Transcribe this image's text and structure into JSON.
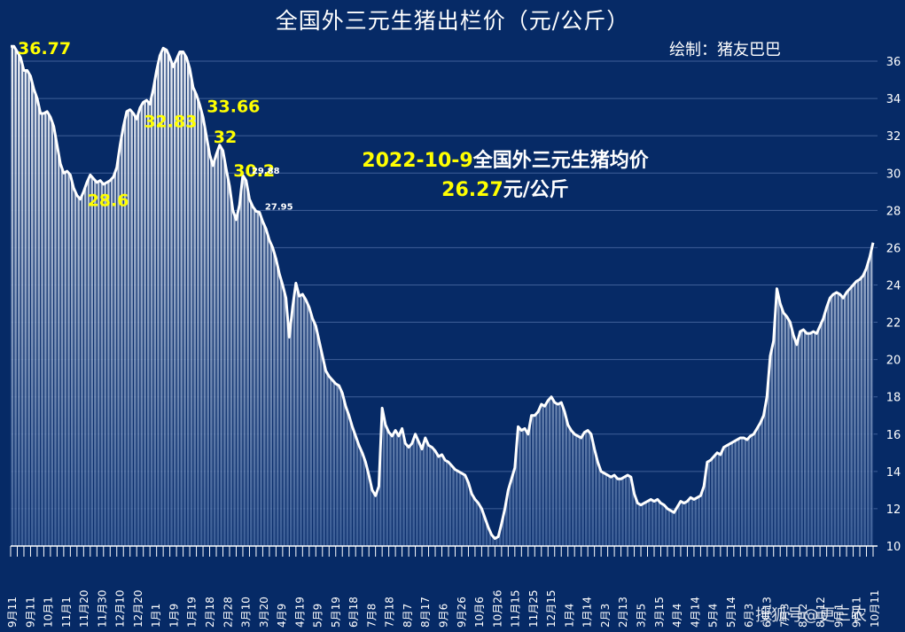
{
  "title": "全国外三元生猪出栏价（元/公斤）",
  "credit": "绘制：猪友巴巴",
  "info": {
    "line1_date": "2022-10-9",
    "line1_text": "全国外三元生猪均价",
    "line2_value": "26.27",
    "line2_unit": "元/公斤"
  },
  "watermark": "搜狐号@更三农",
  "colors": {
    "background": "#062a66",
    "line": "#ffffff",
    "label": "#ffff00",
    "grid": "#3f5f98"
  },
  "chart_data": {
    "type": "area",
    "title": "全国外三元生猪出栏价（元/公斤）",
    "ylabel": "元/公斤",
    "ylim": [
      10,
      37
    ],
    "yticks": [
      10,
      12,
      14,
      16,
      18,
      20,
      22,
      24,
      26,
      28,
      30,
      32,
      34,
      36
    ],
    "grid": true,
    "x_tick_labels": [
      "9月11",
      "9月11",
      "10月1",
      "11月1",
      "11月20",
      "11月30",
      "12月10",
      "12月20",
      "1月1",
      "1月9",
      "1月19",
      "2月18",
      "2月28",
      "3月10",
      "3月20",
      "4月9",
      "4月19",
      "5月9",
      "5月19",
      "6月18",
      "7月8",
      "7月18",
      "8月7",
      "8月17",
      "9月6",
      "9月26",
      "10月6",
      "10月26",
      "11月15",
      "11月25",
      "12月15",
      "1月4",
      "1月14",
      "2月3",
      "2月13",
      "3月5",
      "3月15",
      "4月4",
      "4月14",
      "5月4",
      "5月14",
      "6月3",
      "6月13",
      "7月3",
      "8月2",
      "8月12",
      "9月1",
      "9月11",
      "10月11"
    ],
    "annotations": [
      {
        "text": "36.77",
        "value": 36.77,
        "large": true
      },
      {
        "text": "33.66",
        "value": 33.66,
        "large": true
      },
      {
        "text": "32.83",
        "value": 32.83,
        "large": true
      },
      {
        "text": "32",
        "value": 32,
        "large": true
      },
      {
        "text": "30.2",
        "value": 30.2,
        "large": true
      },
      {
        "text": "29.88",
        "value": 29.88,
        "large": false
      },
      {
        "text": "28.6",
        "value": 28.6,
        "large": true
      },
      {
        "text": "27.95",
        "value": 27.95,
        "large": false
      }
    ],
    "series": [
      {
        "name": "全国外三元生猪出栏价",
        "values": [
          36.8,
          36.8,
          36.5,
          36.2,
          35.5,
          35.5,
          35.2,
          34.5,
          34.0,
          33.2,
          33.2,
          33.3,
          33.0,
          32.5,
          31.5,
          30.5,
          30.0,
          30.1,
          29.9,
          29.2,
          28.8,
          28.6,
          29.0,
          29.5,
          29.9,
          29.7,
          29.5,
          29.6,
          29.4,
          29.5,
          29.6,
          29.8,
          30.3,
          31.5,
          32.5,
          33.3,
          33.4,
          33.2,
          32.9,
          33.5,
          33.8,
          33.9,
          33.7,
          34.5,
          35.5,
          36.3,
          36.7,
          36.6,
          36.2,
          35.7,
          36.1,
          36.5,
          36.5,
          36.2,
          35.6,
          34.6,
          34.2,
          33.66,
          33.0,
          32.0,
          31.0,
          30.4,
          31.0,
          31.5,
          31.2,
          30.2,
          29.3,
          28.0,
          27.5,
          28.3,
          29.88,
          29.6,
          28.6,
          28.2,
          27.95,
          27.9,
          27.4,
          27.0,
          26.4,
          26.0,
          25.4,
          24.6,
          24.0,
          23.3,
          21.2,
          22.8,
          24.1,
          23.4,
          23.5,
          23.2,
          22.8,
          22.2,
          21.8,
          21.0,
          20.2,
          19.4,
          19.1,
          18.9,
          18.7,
          18.6,
          18.2,
          17.5,
          17.0,
          16.4,
          15.9,
          15.4,
          15.0,
          14.5,
          13.8,
          13.0,
          12.7,
          13.2,
          17.4,
          16.5,
          16.1,
          15.9,
          16.2,
          15.9,
          16.3,
          15.5,
          15.3,
          15.5,
          16.0,
          15.6,
          15.2,
          15.8,
          15.4,
          15.3,
          15.1,
          14.8,
          14.9,
          14.6,
          14.5,
          14.3,
          14.1,
          14.0,
          13.9,
          13.8,
          13.4,
          12.8,
          12.5,
          12.3,
          12.0,
          11.5,
          11.0,
          10.6,
          10.4,
          10.5,
          11.2,
          12.0,
          13.0,
          13.6,
          14.2,
          16.4,
          16.2,
          16.3,
          16.0,
          17.0,
          17.0,
          17.2,
          17.6,
          17.5,
          17.8,
          18.0,
          17.7,
          17.6,
          17.7,
          17.2,
          16.5,
          16.2,
          16.0,
          15.9,
          15.8,
          16.1,
          16.2,
          16.0,
          15.2,
          14.5,
          14.0,
          13.9,
          13.8,
          13.7,
          13.8,
          13.6,
          13.6,
          13.7,
          13.8,
          13.7,
          12.8,
          12.3,
          12.2,
          12.3,
          12.4,
          12.5,
          12.4,
          12.5,
          12.3,
          12.2,
          12.0,
          11.9,
          11.8,
          12.1,
          12.4,
          12.3,
          12.4,
          12.6,
          12.5,
          12.6,
          12.7,
          13.2,
          14.5,
          14.6,
          14.8,
          15.0,
          14.9,
          15.3,
          15.4,
          15.5,
          15.6,
          15.7,
          15.8,
          15.8,
          15.7,
          15.9,
          16.0,
          16.3,
          16.6,
          17.0,
          18.0,
          20.2,
          21.0,
          23.8,
          23.0,
          22.5,
          22.3,
          22.0,
          21.3,
          20.8,
          21.5,
          21.6,
          21.4,
          21.4,
          21.5,
          21.4,
          21.8,
          22.2,
          22.8,
          23.3,
          23.5,
          23.6,
          23.5,
          23.3,
          23.6,
          23.8,
          24.0,
          24.2,
          24.3,
          24.5,
          24.9,
          25.5,
          26.27
        ]
      }
    ]
  }
}
